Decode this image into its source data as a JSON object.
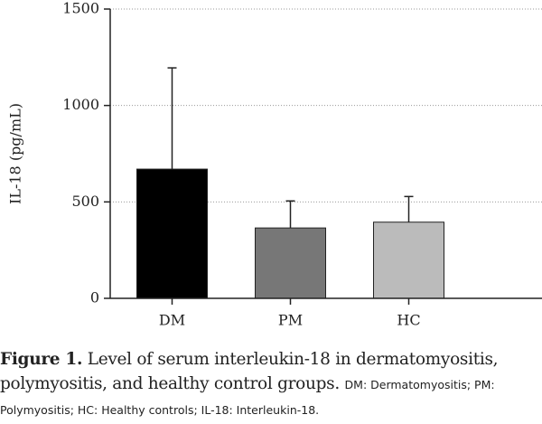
{
  "chart_data": {
    "type": "bar",
    "ylabel": "IL-18 (pg/mL)",
    "categories": [
      "DM",
      "PM",
      "HC"
    ],
    "values": [
      670,
      365,
      395
    ],
    "errors": [
      525,
      140,
      133
    ],
    "colors": [
      "#000000",
      "#777777",
      "#bbbbbb"
    ],
    "ylim": [
      0,
      1500
    ],
    "yticks": [
      0,
      500,
      1000,
      1500
    ],
    "grid": true
  },
  "caption": {
    "label": "Figure 1.",
    "text": "Level of serum interleukin-18 in dermatomyositis, polymyositis, and healthy control groups.",
    "note": "DM: Dermatomyositis; PM: Polymyositis; HC: Healthy controls; IL-18: Interleukin-18."
  }
}
